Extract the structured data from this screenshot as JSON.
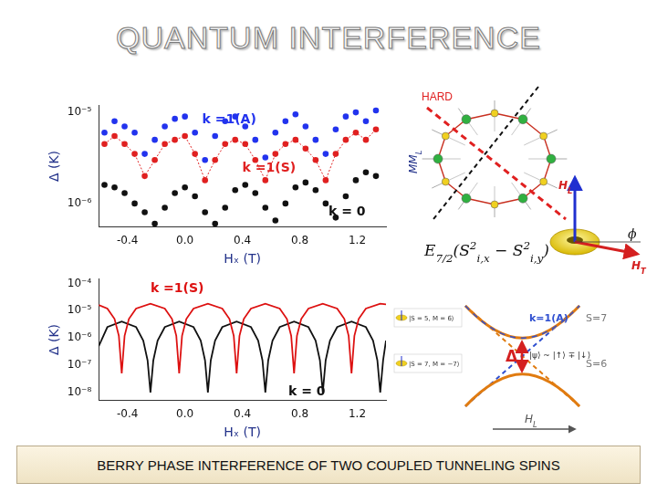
{
  "slide": {
    "title": "QUANTUM INTERFERENCE",
    "caption": "BERRY PHASE INTERFERENCE OF TWO COUPLED TUNNELING SPINS"
  },
  "chart_data": [
    {
      "type": "scatter",
      "x_label": "Hₓ (T)",
      "y_label": "Δ (K)",
      "log": "y",
      "grid": false,
      "xlim": [
        -0.6,
        1.4
      ],
      "xticks": [
        -0.4,
        {
          "value": 0,
          "label": "0.0"
        },
        0.4,
        0.8,
        1.2
      ],
      "ylim": [
        5.5e-07,
        1.2e-05
      ],
      "yticks": [
        {
          "value": 1e-06,
          "label": "10⁻⁶"
        },
        {
          "value": 1e-05,
          "label": "10⁻⁵"
        }
      ],
      "x": [
        -0.56,
        -0.49,
        -0.42,
        -0.35,
        -0.28,
        -0.21,
        -0.14,
        -0.07,
        0.0,
        0.07,
        0.14,
        0.21,
        0.28,
        0.35,
        0.42,
        0.49,
        0.56,
        0.63,
        0.7,
        0.77,
        0.84,
        0.91,
        0.98,
        1.05,
        1.12,
        1.19,
        1.26,
        1.33
      ],
      "series": [
        {
          "name": "k =1(A)",
          "color": "#2233ee",
          "marker": "circle",
          "line_style": "none",
          "values": [
            6e-06,
            8e-06,
            7e-06,
            6e-06,
            3.5e-06,
            5e-06,
            7e-06,
            8.5e-06,
            9e-06,
            6e-06,
            3e-06,
            5.5e-06,
            8e-06,
            9e-06,
            7e-06,
            5e-06,
            3.2e-06,
            6e-06,
            8e-06,
            9.5e-06,
            7e-06,
            5e-06,
            3.5e-06,
            6.5e-06,
            9e-06,
            1e-05,
            8e-06,
            1.05e-05
          ]
        },
        {
          "name": "k =1(S)",
          "color": "#e02020",
          "marker": "circle",
          "line_style": "dotted",
          "values": [
            4.5e-06,
            5.5e-06,
            4.5e-06,
            3.5e-06,
            2e-06,
            3e-06,
            4.5e-06,
            5e-06,
            5.5e-06,
            3.5e-06,
            1.8e-06,
            3e-06,
            4.5e-06,
            5e-06,
            4.5e-06,
            3e-06,
            1.8e-06,
            3.5e-06,
            4.5e-06,
            5e-06,
            4e-06,
            3e-06,
            1.8e-06,
            3.5e-06,
            5e-06,
            6e-06,
            5e-06,
            6.5e-06
          ]
        },
        {
          "name": "k = 0",
          "color": "#111111",
          "marker": "circle",
          "line_style": "none",
          "values": [
            1.6e-06,
            1.5e-06,
            1.3e-06,
            1e-06,
            8e-07,
            6e-07,
            9e-07,
            1.3e-06,
            1.5e-06,
            1.2e-06,
            8e-07,
            6e-07,
            9e-07,
            1.4e-06,
            1.6e-06,
            1.3e-06,
            9e-07,
            6.5e-07,
            1e-06,
            1.5e-06,
            1.7e-06,
            1.4e-06,
            1e-06,
            7e-07,
            1.2e-06,
            1.8e-06,
            2.2e-06,
            2e-06
          ]
        }
      ]
    },
    {
      "type": "line",
      "x_label": "Hₓ (T)",
      "y_label": "Δ (K)",
      "log": "y",
      "grid": false,
      "xlim": [
        -0.6,
        1.4
      ],
      "xticks": [
        -0.4,
        {
          "value": 0,
          "label": "0.0"
        },
        0.4,
        0.8,
        1.2
      ],
      "ylim": [
        5e-09,
        0.00015
      ],
      "yticks": [
        {
          "value": 1e-08,
          "label": "10⁻⁸"
        },
        {
          "value": 1e-07,
          "label": "10⁻⁷"
        },
        {
          "value": 1e-06,
          "label": "10⁻⁶"
        },
        {
          "value": 1e-05,
          "label": "10⁻⁵"
        },
        {
          "value": 0.0001,
          "label": "10⁻⁴"
        }
      ],
      "series": [
        {
          "name": "k =1(S)",
          "color": "#dd1111",
          "marker": "none",
          "line_style": "solid",
          "x": [
            -0.6,
            -0.54,
            -0.49,
            -0.46,
            -0.44,
            -0.42,
            -0.39,
            -0.34,
            -0.24,
            -0.14,
            -0.09,
            -0.06,
            -0.04,
            -0.02,
            0.01,
            0.06,
            0.16,
            0.26,
            0.31,
            0.34,
            0.36,
            0.38,
            0.41,
            0.46,
            0.56,
            0.66,
            0.71,
            0.74,
            0.76,
            0.78,
            0.81,
            0.86,
            0.96,
            1.06,
            1.11,
            1.14,
            1.16,
            1.18,
            1.21,
            1.26,
            1.36,
            1.4
          ],
          "values": [
            1.6e-05,
            1.2e-05,
            5e-06,
            1.2e-06,
            5e-08,
            1.2e-06,
            5e-06,
            1.2e-05,
            1.8e-05,
            1.2e-05,
            5e-06,
            1.2e-06,
            5e-08,
            1.2e-06,
            5e-06,
            1.2e-05,
            1.8e-05,
            1.2e-05,
            5e-06,
            1.2e-06,
            5e-08,
            1.2e-06,
            5e-06,
            1.2e-05,
            1.8e-05,
            1.2e-05,
            5e-06,
            1.2e-06,
            5e-08,
            1.2e-06,
            5e-06,
            1.2e-05,
            1.8e-05,
            1.2e-05,
            5e-06,
            1.2e-06,
            5e-08,
            1.2e-06,
            5e-06,
            1.2e-05,
            1.8e-05,
            1.7e-05
          ]
        },
        {
          "name": "k = 0",
          "color": "#111111",
          "marker": "none",
          "line_style": "solid",
          "x": [
            -0.6,
            -0.54,
            -0.44,
            -0.34,
            -0.29,
            -0.26,
            -0.24,
            -0.22,
            -0.19,
            -0.14,
            -0.04,
            0.06,
            0.11,
            0.14,
            0.16,
            0.18,
            0.21,
            0.26,
            0.36,
            0.46,
            0.51,
            0.54,
            0.56,
            0.58,
            0.61,
            0.66,
            0.76,
            0.86,
            0.91,
            0.94,
            0.96,
            0.98,
            1.01,
            1.06,
            1.16,
            1.26,
            1.31,
            1.34,
            1.36,
            1.38,
            1.4
          ],
          "values": [
            5e-07,
            2.5e-06,
            4e-06,
            2.5e-06,
            8e-07,
            1.5e-07,
            1e-08,
            1.5e-07,
            8e-07,
            2.5e-06,
            4e-06,
            2.5e-06,
            8e-07,
            1.5e-07,
            1e-08,
            1.5e-07,
            8e-07,
            2.5e-06,
            4e-06,
            2.5e-06,
            8e-07,
            1.5e-07,
            1e-08,
            1.5e-07,
            8e-07,
            2.5e-06,
            4e-06,
            2.5e-06,
            8e-07,
            1.5e-07,
            1e-08,
            1.5e-07,
            8e-07,
            2.5e-06,
            4e-06,
            2.5e-06,
            8e-07,
            1.5e-07,
            1e-08,
            1.5e-07,
            8e-07
          ]
        }
      ]
    }
  ],
  "diagram": {
    "hard_axis": "HARD",
    "easy_axis": [
      {
        "text": "MM"
      },
      {
        "text": "L",
        "sub": true
      }
    ],
    "h_longitudinal": [
      {
        "text": "H"
      },
      {
        "text": "L",
        "sub": true
      }
    ],
    "h_transverse": [
      {
        "text": "H"
      },
      {
        "text": "T",
        "sub": true
      }
    ],
    "angle": "ϕ",
    "hamiltonian": [
      {
        "text": "E"
      },
      {
        "text": "7/2",
        "sub": true
      },
      {
        "text": "(S"
      },
      {
        "text": "2",
        "sup": true
      },
      {
        "text": "i,x",
        "sub": true
      },
      {
        "text": " − S"
      },
      {
        "text": "2",
        "sup": true
      },
      {
        "text": "i,y",
        "sub": true
      },
      {
        "text": ")"
      }
    ],
    "levels": {
      "state_upper": "|S = 5, M = 6⟩",
      "state_lower": "|S = 7, M = −7⟩",
      "branch": "k=1(A)",
      "spin_high": "S=7",
      "spin_low": "S=6",
      "gap": "Δ",
      "superposition": "|ψ⟩ ~ |↑⟩ ∓ |↓⟩",
      "field": [
        {
          "text": "H"
        },
        {
          "text": "L",
          "sub": true
        }
      ]
    }
  }
}
